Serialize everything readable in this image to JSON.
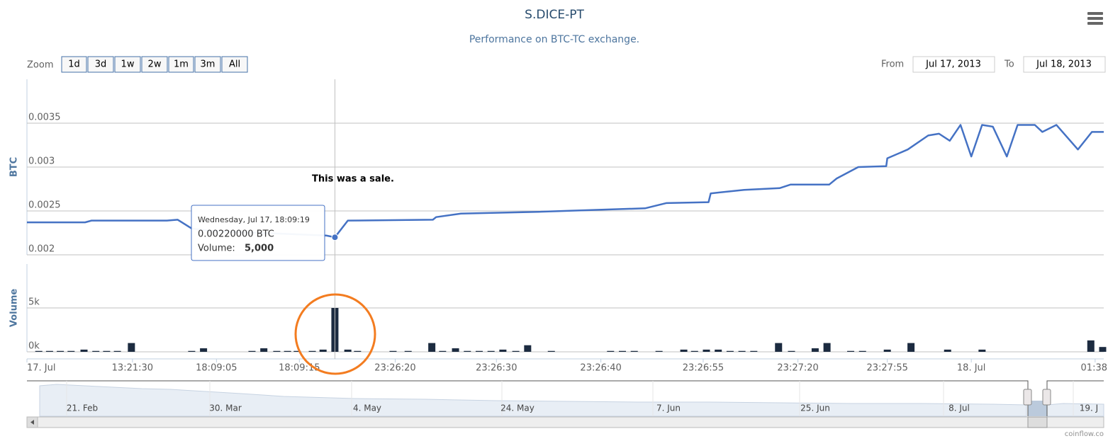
{
  "title": "S.DICE-PT",
  "subtitle": "Performance on BTC-TC exchange.",
  "range_selector": {
    "zoom_label": "Zoom",
    "buttons": [
      "1d",
      "3d",
      "1w",
      "2w",
      "1m",
      "3m",
      "All"
    ],
    "from_label": "From",
    "from": "Jul 17, 2013",
    "to_label": "To",
    "to": "Jul 18, 2013"
  },
  "annotation": "This was a sale.",
  "tooltip": {
    "date": "Wednesday, Jul 17, 18:09:19",
    "price": "0.00220000 BTC",
    "volume_label": "Volume:",
    "volume": "5,000"
  },
  "navigator": {
    "labels": [
      "21. Feb",
      "30. Mar",
      "4. May",
      "24. May",
      "7. Jun",
      "25. Jun",
      "8. Jul",
      "19. J"
    ]
  },
  "credits": "coinflow.co",
  "chart_data": [
    {
      "type": "line",
      "y_label": "BTC",
      "color": "#4572c4",
      "x": [
        0,
        5.4,
        6,
        13,
        14,
        15.3,
        17.2,
        23.8,
        27.8,
        28.6,
        29.8,
        37.7,
        38,
        40.3,
        47.5,
        57.4,
        59.4,
        63.3,
        63.5,
        66.6,
        69.9,
        70.9,
        74.5,
        75.2,
        77.2,
        79.8,
        79.9,
        81.8,
        83.7,
        84.7,
        85.7,
        86.7,
        87.7,
        88.7,
        89.7,
        91,
        92,
        93.6,
        94.3,
        95.6,
        97.6,
        98.9,
        100
      ],
      "values": [
        0.00237,
        0.00237,
        0.00239,
        0.00239,
        0.0024,
        0.0023,
        0.00227,
        0.00224,
        0.00222,
        0.0022,
        0.00239,
        0.0024,
        0.00243,
        0.00247,
        0.00249,
        0.00253,
        0.00259,
        0.0026,
        0.0027,
        0.00274,
        0.00276,
        0.0028,
        0.0028,
        0.00287,
        0.003,
        0.00301,
        0.0031,
        0.0032,
        0.00336,
        0.00338,
        0.0033,
        0.00348,
        0.00312,
        0.00348,
        0.00346,
        0.00312,
        0.00348,
        0.00348,
        0.0034,
        0.00348,
        0.0032,
        0.0034,
        0.0034
      ],
      "xlim": [
        0,
        100
      ],
      "ylim": [
        0.002,
        0.004
      ],
      "yticks": [
        0.002,
        0.0025,
        0.003,
        0.0035
      ],
      "grid": true
    },
    {
      "type": "bar",
      "y_label": "Volume",
      "color": "#1c2b40",
      "x": [
        1.1,
        2.1,
        3.1,
        4.1,
        5.3,
        6.4,
        7.4,
        8.4,
        9.7,
        15.3,
        16.4,
        20.9,
        22,
        23.2,
        24.2,
        25.1,
        26.5,
        27.5,
        28.6,
        29.8,
        30.7,
        34,
        35.4,
        37.6,
        38.6,
        39.8,
        40.9,
        42,
        43.1,
        44.2,
        45.4,
        46.5,
        48.7,
        54.2,
        55.3,
        56.4,
        58.7,
        61,
        62,
        63.1,
        64.2,
        65.3,
        66.4,
        67.5,
        69.8,
        71,
        73.2,
        74.3,
        76.5,
        77.6,
        79.9,
        82.1,
        85.5,
        88.7,
        98.8,
        99.9
      ],
      "values": [
        100,
        100,
        100,
        100,
        250,
        100,
        100,
        100,
        1000,
        100,
        400,
        100,
        400,
        100,
        100,
        100,
        100,
        250,
        5000,
        250,
        100,
        100,
        100,
        1000,
        100,
        400,
        100,
        100,
        100,
        250,
        100,
        750,
        100,
        100,
        100,
        100,
        100,
        250,
        100,
        250,
        250,
        100,
        100,
        100,
        1000,
        100,
        400,
        1000,
        100,
        100,
        250,
        1000,
        250,
        250,
        1300,
        550
      ],
      "xlim": [
        0,
        100
      ],
      "ylim": [
        0,
        10000
      ],
      "yticks": [
        {
          "value": 0,
          "label": "0k"
        },
        {
          "value": 5000,
          "label": "5k"
        }
      ],
      "xticks": [
        {
          "value": 0,
          "label": "17. Jul"
        },
        {
          "value": 9.8,
          "label": "13:21:30"
        },
        {
          "value": 17.6,
          "label": "18:09:05"
        },
        {
          "value": 25.3,
          "label": "18:09:15"
        },
        {
          "value": 34.2,
          "label": "23:26:20"
        },
        {
          "value": 43.6,
          "label": "23:26:30"
        },
        {
          "value": 53.3,
          "label": "23:26:40"
        },
        {
          "value": 62.8,
          "label": "23:26:55"
        },
        {
          "value": 71.6,
          "label": "23:27:20"
        },
        {
          "value": 79.9,
          "label": "23:27:55"
        },
        {
          "value": 87.7,
          "label": "18. Jul"
        },
        {
          "value": 99.2,
          "label": "01:38"
        }
      ],
      "grid": true
    }
  ]
}
